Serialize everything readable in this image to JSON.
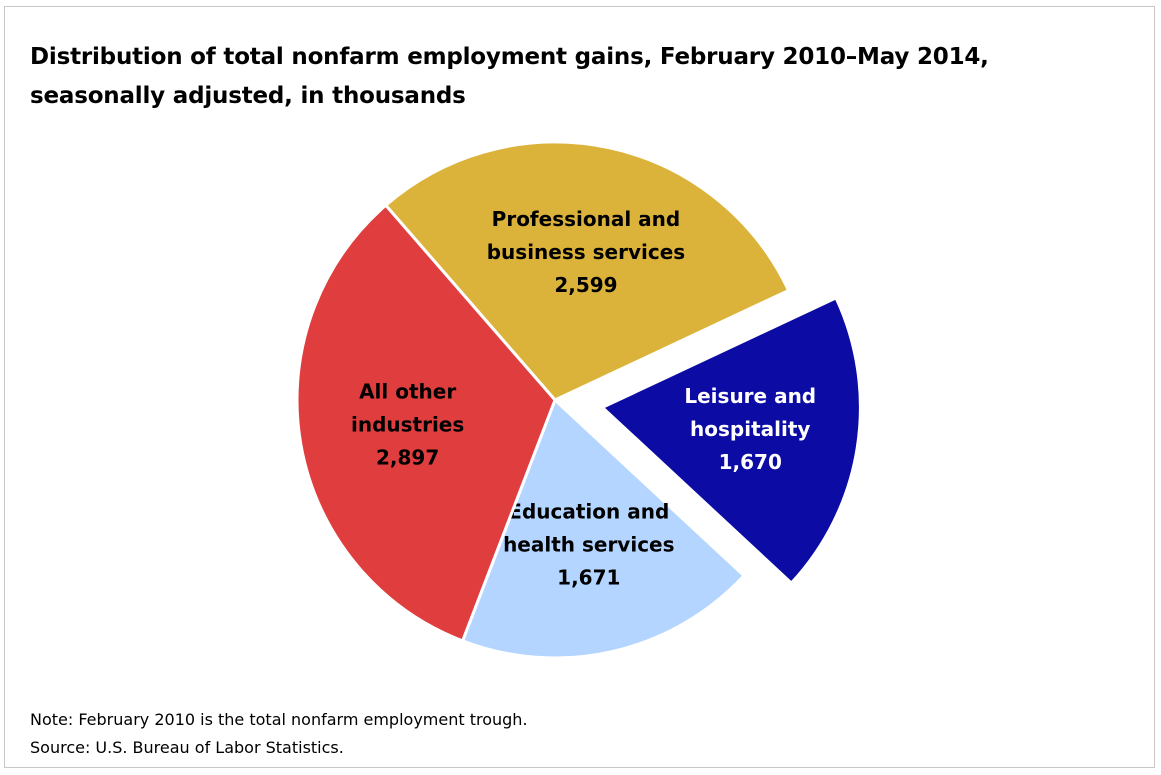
{
  "chart_data": {
    "type": "pie",
    "title_lines": [
      "Distribution of total nonfarm employment gains, February 2010–May 2014,",
      "seasonally adjusted, in thousands"
    ],
    "slices": [
      {
        "label_lines": [
          "Professional and",
          "business services"
        ],
        "value": 2599,
        "value_label": "2,599",
        "color": "#dcb33a",
        "text_color": "#000000",
        "exploded": false
      },
      {
        "label_lines": [
          "Leisure and",
          "hospitality"
        ],
        "value": 1670,
        "value_label": "1,670",
        "color": "#0c0ba3",
        "text_color": "#ffffff",
        "exploded": true
      },
      {
        "label_lines": [
          "Education and",
          "health services"
        ],
        "value": 1671,
        "value_label": "1,671",
        "color": "#b3d5ff",
        "text_color": "#000000",
        "exploded": false
      },
      {
        "label_lines": [
          "All other",
          "industries"
        ],
        "value": 2897,
        "value_label": "2,897",
        "color": "#e03e3e",
        "text_color": "#000000",
        "exploded": false
      }
    ]
  },
  "footer": {
    "note": "Note: February 2010  is the total nonfarm employment trough.",
    "source": "Source: U.S. Bureau of Labor Statistics."
  }
}
